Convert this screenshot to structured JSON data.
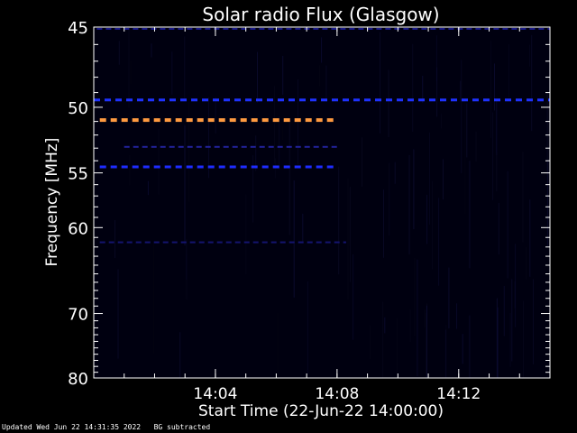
{
  "chart_data": {
    "type": "heatmap",
    "title": "Solar radio Flux (Glasgow)",
    "xlabel": "Start Time (22-Jun-22 14:00:00)",
    "ylabel": "Frequency [MHz]",
    "x_unit": "minutes after 14:00",
    "xlim": [
      0,
      15
    ],
    "ylim": [
      80,
      45
    ],
    "y_scale": "reciprocal",
    "x_ticks": [
      {
        "value": 4,
        "label": "14:04"
      },
      {
        "value": 8,
        "label": "14:08"
      },
      {
        "value": 12,
        "label": "14:12"
      }
    ],
    "y_ticks": [
      {
        "value": 45,
        "label": "45"
      },
      {
        "value": 50,
        "label": "50"
      },
      {
        "value": 55,
        "label": "55"
      },
      {
        "value": 60,
        "label": "60"
      },
      {
        "value": 70,
        "label": "70"
      },
      {
        "value": 80,
        "label": "80"
      }
    ],
    "background_color": "#000010",
    "bands": [
      {
        "freq": 45.1,
        "x_start": 0.1,
        "x_end": 15,
        "level": "faint",
        "color": "#1a1a8a"
      },
      {
        "freq": 49.5,
        "x_start": 0,
        "x_end": 15,
        "level": "low",
        "color": "#1e32ff"
      },
      {
        "freq": 50.9,
        "x_start": 0.2,
        "x_end": 8,
        "level": "high",
        "color": "#ff9a40"
      },
      {
        "freq": 52.9,
        "x_start": 1,
        "x_end": 8,
        "level": "faint",
        "color": "#22229a"
      },
      {
        "freq": 54.5,
        "x_start": 0.2,
        "x_end": 8,
        "level": "low",
        "color": "#1e2cff"
      },
      {
        "freq": 61.5,
        "x_start": 0.2,
        "x_end": 8.3,
        "level": "faint",
        "color": "#141470"
      }
    ]
  },
  "footer": {
    "updated": "Updated Wed Jun 22 14:31:35 2022",
    "note": "BG subtracted"
  }
}
